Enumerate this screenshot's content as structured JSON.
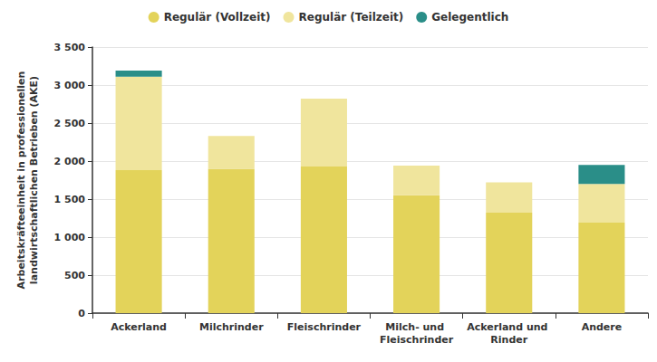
{
  "chart_data": {
    "type": "bar",
    "stacked": true,
    "grid": true,
    "legend": "top",
    "y_label": "Arbeitskräfteeinheit in professionellen\nlandwirtschaftlichen Betrieben (AKE)",
    "categories": [
      "Ackerland",
      "Milchrinder",
      "Fleischrinder",
      "Milch- und Fleischrinder",
      "Ackerland und Rinder",
      "Andere"
    ],
    "series": [
      {
        "name": "Regulär (Vollzeit)",
        "color": "#e3d35a",
        "values": [
          1880,
          1900,
          1930,
          1550,
          1320,
          1190
        ]
      },
      {
        "name": "Regulär (Teilzeit)",
        "color": "#f0e59d",
        "values": [
          1230,
          430,
          890,
          390,
          400,
          510
        ]
      },
      {
        "name": "Gelegentlich",
        "color": "#2a8e88",
        "values": [
          80,
          0,
          0,
          0,
          0,
          250
        ]
      }
    ],
    "ylim": [
      0,
      3500
    ],
    "yticks": [
      0,
      500,
      {
        "value": 1000,
        "label": "1 000"
      },
      {
        "value": 1500,
        "label": "1 500"
      },
      {
        "value": 2000,
        "label": "2 000"
      },
      {
        "value": 2500,
        "label": "2 500"
      },
      {
        "value": 3000,
        "label": "3 000"
      },
      {
        "value": 3500,
        "label": "3 500"
      }
    ]
  }
}
